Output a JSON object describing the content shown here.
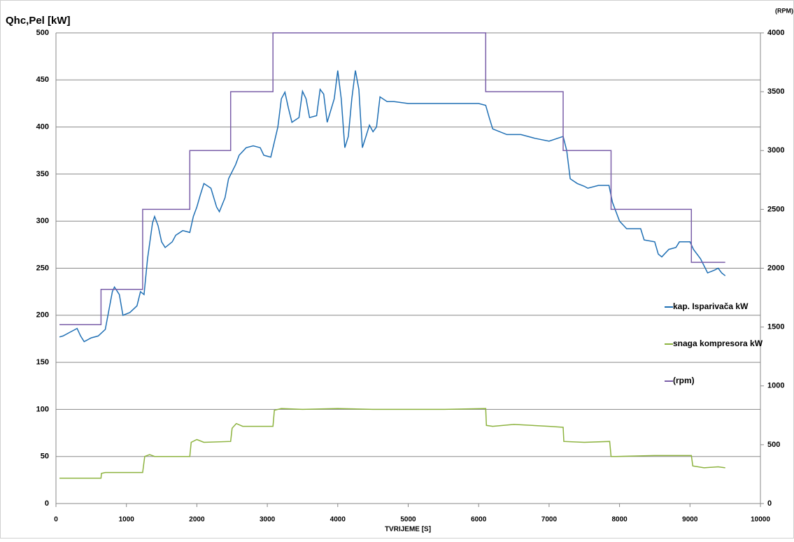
{
  "chart_data": {
    "type": "line",
    "ylabel": "Qhc,Pel [kW]",
    "y2label": "(RPM)",
    "xlabel": "TVRIJEME [S]",
    "xlim": [
      0,
      10000
    ],
    "xticks": [
      0,
      1000,
      2000,
      3000,
      4000,
      5000,
      6000,
      7000,
      8000,
      9000,
      10000
    ],
    "ylim": [
      0,
      500
    ],
    "yticks": [
      0,
      50,
      100,
      150,
      200,
      250,
      300,
      350,
      400,
      450,
      500
    ],
    "y2lim": [
      0,
      4000
    ],
    "y2ticks": [
      0,
      500,
      1000,
      1500,
      2000,
      2500,
      3000,
      3500,
      4000
    ],
    "grid": true,
    "legend": "right",
    "series": [
      {
        "name": "kap. Isparivača kW",
        "color": "#1f6fb4",
        "x": [
          50,
          100,
          200,
          300,
          350,
          400,
          500,
          600,
          700,
          800,
          830,
          900,
          950,
          1050,
          1150,
          1200,
          1250,
          1300,
          1370,
          1400,
          1450,
          1500,
          1550,
          1650,
          1700,
          1800,
          1900,
          1950,
          2000,
          2050,
          2100,
          2200,
          2280,
          2320,
          2400,
          2450,
          2550,
          2600,
          2700,
          2800,
          2900,
          2950,
          3050,
          3150,
          3200,
          3250,
          3300,
          3350,
          3450,
          3500,
          3550,
          3600,
          3700,
          3750,
          3800,
          3850,
          3950,
          4000,
          4050,
          4100,
          4150,
          4200,
          4250,
          4300,
          4350,
          4400,
          4450,
          4500,
          4550,
          4600,
          4700,
          4800,
          5000,
          5500,
          6000,
          6100,
          6150,
          6200,
          6400,
          6600,
          6800,
          7000,
          7200,
          7250,
          7300,
          7400,
          7500,
          7550,
          7700,
          7850,
          7900,
          8000,
          8100,
          8300,
          8350,
          8500,
          8550,
          8600,
          8700,
          8800,
          8850,
          9000,
          9050,
          9150,
          9250,
          9350,
          9400,
          9450,
          9500
        ],
        "values": [
          177,
          178,
          182,
          186,
          178,
          172,
          176,
          178,
          185,
          225,
          230,
          222,
          200,
          203,
          210,
          225,
          222,
          260,
          298,
          305,
          295,
          278,
          272,
          278,
          285,
          290,
          288,
          305,
          315,
          328,
          340,
          335,
          315,
          310,
          325,
          345,
          360,
          370,
          378,
          380,
          378,
          370,
          368,
          400,
          430,
          437,
          420,
          405,
          410,
          438,
          430,
          410,
          412,
          440,
          435,
          405,
          430,
          460,
          430,
          378,
          390,
          430,
          460,
          440,
          378,
          390,
          402,
          395,
          400,
          432,
          427,
          427,
          425,
          425,
          425,
          423,
          410,
          398,
          392,
          392,
          388,
          385,
          390,
          375,
          345,
          340,
          337,
          335,
          338,
          338,
          320,
          300,
          292,
          292,
          280,
          278,
          265,
          262,
          270,
          272,
          278,
          278,
          270,
          260,
          245,
          248,
          250,
          245,
          242
        ]
      },
      {
        "name": "snaga kompresora kW",
        "color": "#8db33f",
        "x": [
          50,
          640,
          645,
          700,
          1230,
          1260,
          1330,
          1400,
          1900,
          1920,
          2000,
          2100,
          2480,
          2500,
          2560,
          2650,
          3080,
          3100,
          3200,
          3500,
          4000,
          4500,
          5000,
          5500,
          6100,
          6110,
          6200,
          6500,
          7000,
          7200,
          7210,
          7500,
          7860,
          7880,
          7950,
          8500,
          9020,
          9040,
          9200,
          9400,
          9500
        ],
        "values": [
          27,
          27,
          32,
          33,
          33,
          50,
          52,
          50,
          50,
          65,
          68,
          65,
          66,
          80,
          85,
          82,
          82,
          99,
          101,
          100,
          101,
          100,
          100,
          100,
          101,
          83,
          82,
          84,
          82,
          81,
          66,
          65,
          66,
          50,
          50,
          51,
          51,
          40,
          38,
          39,
          38
        ]
      },
      {
        "name": "(rpm)",
        "color": "#7a5ea8",
        "axis": "y2",
        "x": [
          50,
          640,
          640,
          1230,
          1230,
          1900,
          1900,
          2480,
          2480,
          3080,
          3080,
          6100,
          6100,
          7200,
          7200,
          7880,
          7880,
          9020,
          9020,
          9500
        ],
        "values": [
          1520,
          1520,
          1820,
          1820,
          2500,
          2500,
          3000,
          3000,
          3500,
          3500,
          4000,
          4000,
          3500,
          3500,
          3000,
          3000,
          2500,
          2500,
          2050,
          2050
        ]
      }
    ]
  }
}
